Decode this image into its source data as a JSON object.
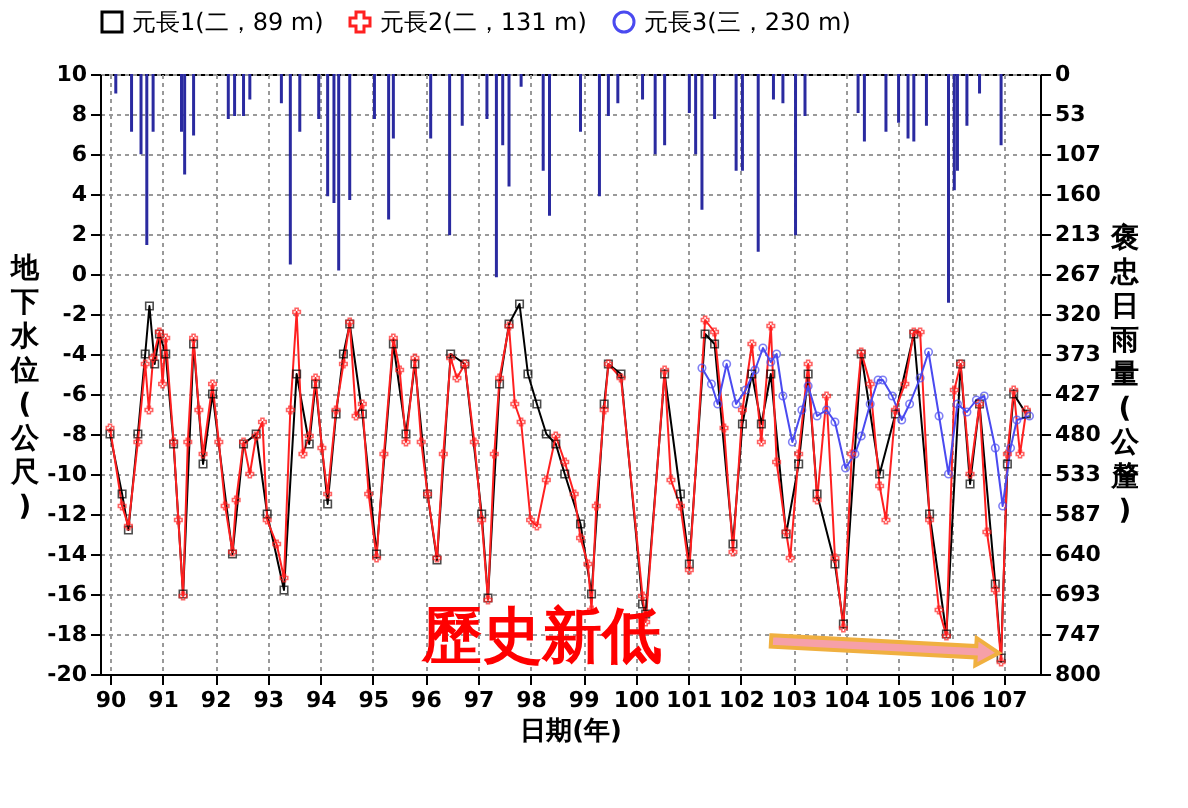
{
  "chart_data": {
    "type": "line",
    "xlabel": "日期(年)",
    "ylabel": "地下水位(公尺)",
    "y2label": "褒忠日雨量(公釐)",
    "xlim": [
      90,
      107.5
    ],
    "xticks": [
      90,
      91,
      92,
      93,
      94,
      95,
      96,
      97,
      98,
      99,
      100,
      101,
      102,
      103,
      104,
      105,
      106,
      107
    ],
    "ylim": [
      -20,
      10
    ],
    "yticks": [
      -20,
      -18,
      -16,
      -14,
      -12,
      -10,
      -8,
      -6,
      -4,
      -2,
      0,
      2,
      4,
      6,
      8,
      10
    ],
    "y2lim": [
      800,
      0
    ],
    "y2ticks": [
      {
        "value": 0,
        "label": "0"
      },
      {
        "value": 53.33,
        "label": "53"
      },
      {
        "value": 106.67,
        "label": "107"
      },
      {
        "value": 160,
        "label": "160"
      },
      {
        "value": 213.33,
        "label": "213"
      },
      {
        "value": 266.67,
        "label": "267"
      },
      {
        "value": 320,
        "label": "320"
      },
      {
        "value": 373.33,
        "label": "373"
      },
      {
        "value": 426.67,
        "label": "427"
      },
      {
        "value": 480,
        "label": "480"
      },
      {
        "value": 533.33,
        "label": "533"
      },
      {
        "value": 586.67,
        "label": "587"
      },
      {
        "value": 640,
        "label": "640"
      },
      {
        "value": 693.33,
        "label": "693"
      },
      {
        "value": 746.67,
        "label": "747"
      },
      {
        "value": 800,
        "label": "800"
      }
    ],
    "grid": true,
    "legend": "top",
    "annotations": [
      "歷史新低"
    ],
    "series": [
      {
        "name": "元長1(二，89 m)",
        "color": "#000000",
        "marker": "square",
        "x": [
          90.0,
          90.23,
          90.35,
          90.53,
          90.67,
          90.75,
          90.85,
          90.94,
          91.06,
          91.21,
          91.39,
          91.59,
          91.77,
          91.95,
          92.33,
          92.54,
          92.78,
          92.99,
          93.31,
          93.55,
          93.79,
          93.91,
          94.14,
          94.3,
          94.44,
          94.56,
          94.8,
          95.07,
          95.39,
          95.63,
          95.8,
          96.04,
          96.22,
          96.48,
          96.75,
          97.07,
          97.19,
          97.41,
          97.59,
          97.79,
          97.95,
          98.12,
          98.3,
          98.48,
          98.65,
          98.95,
          99.16,
          99.4,
          99.48,
          99.72,
          100.13,
          100.19,
          100.55,
          100.85,
          101.02,
          101.32,
          101.5,
          101.85,
          102.03,
          102.21,
          102.39,
          102.57,
          102.86,
          103.1,
          103.28,
          103.45,
          103.79,
          103.95,
          104.29,
          104.64,
          104.94,
          105.29,
          105.59,
          105.91,
          106.18,
          106.36,
          106.54,
          106.84,
          106.95,
          107.07,
          107.19,
          107.43
        ],
        "values": [
          -8.0,
          -11.0,
          -12.8,
          -8.0,
          -4.0,
          -1.6,
          -4.5,
          -3.0,
          -4.0,
          -8.5,
          -16.0,
          -3.5,
          -9.5,
          -6.0,
          -14.0,
          -8.5,
          -8.0,
          -12.0,
          -15.8,
          -5.0,
          -8.5,
          -5.5,
          -11.5,
          -7.0,
          -4.0,
          -2.5,
          -7.0,
          -14.0,
          -3.5,
          -8.0,
          -4.5,
          -11.0,
          -14.3,
          -4.0,
          -4.5,
          -12.0,
          -16.2,
          -5.5,
          -2.5,
          -1.5,
          -5.0,
          -6.5,
          -8.0,
          -8.5,
          -10.0,
          -12.5,
          -16.0,
          -6.5,
          -4.5,
          -5.0,
          -16.5,
          -17.0,
          -5.0,
          -11.0,
          -14.5,
          -3.0,
          -3.5,
          -13.5,
          -7.5,
          -5.0,
          -7.5,
          -5.0,
          -13.0,
          -9.5,
          -5.0,
          -11.0,
          -14.5,
          -17.5,
          -4.0,
          -10.0,
          -7.0,
          -3.0,
          -12.0,
          -18.0,
          -4.5,
          -10.5,
          -6.5,
          -15.5,
          -19.2,
          -9.5,
          -6.0,
          -7.0
        ]
      },
      {
        "name": "元長2(二，131 m)",
        "color": "#ff2020",
        "marker": "cross",
        "x": [
          90.0,
          90.23,
          90.35,
          90.53,
          90.67,
          90.74,
          90.82,
          90.94,
          91.0,
          91.06,
          91.21,
          91.3,
          91.39,
          91.48,
          91.59,
          91.69,
          91.77,
          91.95,
          92.07,
          92.19,
          92.33,
          92.4,
          92.54,
          92.66,
          92.78,
          92.9,
          92.99,
          93.17,
          93.31,
          93.43,
          93.55,
          93.67,
          93.79,
          93.91,
          94.03,
          94.14,
          94.3,
          94.44,
          94.56,
          94.68,
          94.8,
          94.92,
          95.07,
          95.21,
          95.39,
          95.51,
          95.63,
          95.8,
          95.92,
          96.04,
          96.22,
          96.34,
          96.48,
          96.6,
          96.75,
          96.93,
          97.07,
          97.19,
          97.31,
          97.41,
          97.59,
          97.7,
          97.82,
          98.0,
          98.12,
          98.3,
          98.48,
          98.65,
          98.83,
          98.95,
          99.09,
          99.16,
          99.25,
          99.4,
          99.48,
          99.72,
          100.13,
          100.19,
          100.55,
          100.67,
          100.85,
          101.02,
          101.32,
          101.5,
          101.68,
          101.85,
          102.03,
          102.21,
          102.39,
          102.57,
          102.68,
          102.86,
          102.94,
          103.1,
          103.28,
          103.45,
          103.63,
          103.79,
          103.95,
          104.11,
          104.29,
          104.46,
          104.64,
          104.76,
          104.94,
          105.12,
          105.29,
          105.41,
          105.59,
          105.77,
          105.91,
          106.06,
          106.18,
          106.36,
          106.54,
          106.68,
          106.84,
          106.95,
          107.07,
          107.19,
          107.31,
          107.43
        ],
        "values": [
          -7.7,
          -11.6,
          -12.6,
          -8.4,
          -4.5,
          -6.8,
          -4.2,
          -2.9,
          -5.5,
          -3.2,
          -8.4,
          -12.3,
          -16.1,
          -8.4,
          -3.2,
          -6.8,
          -9.0,
          -5.5,
          -8.4,
          -11.6,
          -13.9,
          -11.3,
          -8.4,
          -10.0,
          -8.1,
          -7.4,
          -12.3,
          -13.5,
          -15.2,
          -6.8,
          -1.9,
          -9.0,
          -8.1,
          -5.2,
          -8.7,
          -11.0,
          -6.8,
          -4.5,
          -2.4,
          -7.1,
          -6.5,
          -11.0,
          -14.2,
          -9.0,
          -3.2,
          -4.8,
          -8.4,
          -4.2,
          -8.4,
          -11.0,
          -14.2,
          -9.0,
          -4.2,
          -5.2,
          -4.5,
          -8.4,
          -12.3,
          -16.3,
          -9.0,
          -5.2,
          -2.6,
          -6.5,
          -7.4,
          -12.3,
          -12.6,
          -10.3,
          -8.1,
          -9.4,
          -11.0,
          -13.2,
          -14.5,
          -16.8,
          -11.6,
          -6.8,
          -4.5,
          -5.2,
          -16.1,
          -17.4,
          -4.8,
          -10.3,
          -11.6,
          -14.8,
          -2.3,
          -2.9,
          -7.7,
          -13.9,
          -6.8,
          -3.5,
          -8.4,
          -2.6,
          -9.4,
          -12.9,
          -14.2,
          -9.0,
          -4.5,
          -11.3,
          -6.1,
          -14.2,
          -17.7,
          -9.0,
          -3.9,
          -5.5,
          -10.6,
          -12.3,
          -6.8,
          -5.5,
          -2.9,
          -2.9,
          -12.3,
          -16.8,
          -18.1,
          -5.8,
          -4.5,
          -10.0,
          -6.5,
          -12.9,
          -15.8,
          -19.4,
          -9.0,
          -5.8,
          -9.0,
          -6.8
        ]
      },
      {
        "name": "元長3(三，230 m)",
        "color": "#4a4af0",
        "marker": "circle",
        "x": [
          101.26,
          101.44,
          101.56,
          101.73,
          101.91,
          102.09,
          102.27,
          102.42,
          102.57,
          102.68,
          102.8,
          102.98,
          103.16,
          103.28,
          103.45,
          103.63,
          103.79,
          103.99,
          104.17,
          104.29,
          104.46,
          104.61,
          104.7,
          104.88,
          105.06,
          105.21,
          105.41,
          105.57,
          105.77,
          105.95,
          106.12,
          106.3,
          106.48,
          106.63,
          106.84,
          106.98,
          107.13,
          107.25,
          107.49
        ],
        "values": [
          -4.7,
          -5.5,
          -6.5,
          -4.5,
          -6.5,
          -5.8,
          -4.8,
          -3.7,
          -4.4,
          -4.0,
          -6.1,
          -8.4,
          -6.8,
          -5.6,
          -7.1,
          -6.8,
          -7.4,
          -9.7,
          -9.0,
          -8.1,
          -6.5,
          -5.3,
          -5.3,
          -6.1,
          -7.3,
          -6.5,
          -5.2,
          -3.9,
          -7.1,
          -10.0,
          -6.5,
          -6.9,
          -6.3,
          -6.1,
          -8.7,
          -11.6,
          -8.7,
          -7.3,
          -7.1
        ]
      },
      {
        "type": "bar",
        "axis": "y2",
        "color": "#2a2aa0",
        "x": [
          90.11,
          90.41,
          90.59,
          90.7,
          90.82,
          91.36,
          91.42,
          91.59,
          92.25,
          92.37,
          92.54,
          92.66,
          93.26,
          93.43,
          93.61,
          93.97,
          94.14,
          94.26,
          94.35,
          94.56,
          95.03,
          95.3,
          95.39,
          96.1,
          96.46,
          96.7,
          97.17,
          97.35,
          97.47,
          97.59,
          97.82,
          98.24,
          98.36,
          98.95,
          99.31,
          99.48,
          99.66,
          100.13,
          100.37,
          100.55,
          101.02,
          101.14,
          101.26,
          101.5,
          101.91,
          102.03,
          102.33,
          102.62,
          102.8,
          103.04,
          103.22,
          104.23,
          104.35,
          104.76,
          105.0,
          105.18,
          105.29,
          105.53,
          105.95,
          106.06,
          106.12,
          106.3,
          106.54,
          106.95
        ],
        "values": [
          26,
          77,
          107,
          228,
          77,
          77,
          134,
          82,
          60,
          56,
          56,
          34,
          39,
          254,
          77,
          60,
          163,
          172,
          262,
          168,
          60,
          194,
          86,
          86,
          215,
          69,
          60,
          271,
          95,
          150,
          17,
          129,
          189,
          77,
          163,
          56,
          39,
          34,
          107,
          95,
          52,
          107,
          181,
          60,
          129,
          129,
          237,
          34,
          39,
          215,
          56,
          52,
          90,
          77,
          65,
          86,
          90,
          69,
          305,
          155,
          129,
          69,
          26,
          95
        ]
      }
    ]
  }
}
